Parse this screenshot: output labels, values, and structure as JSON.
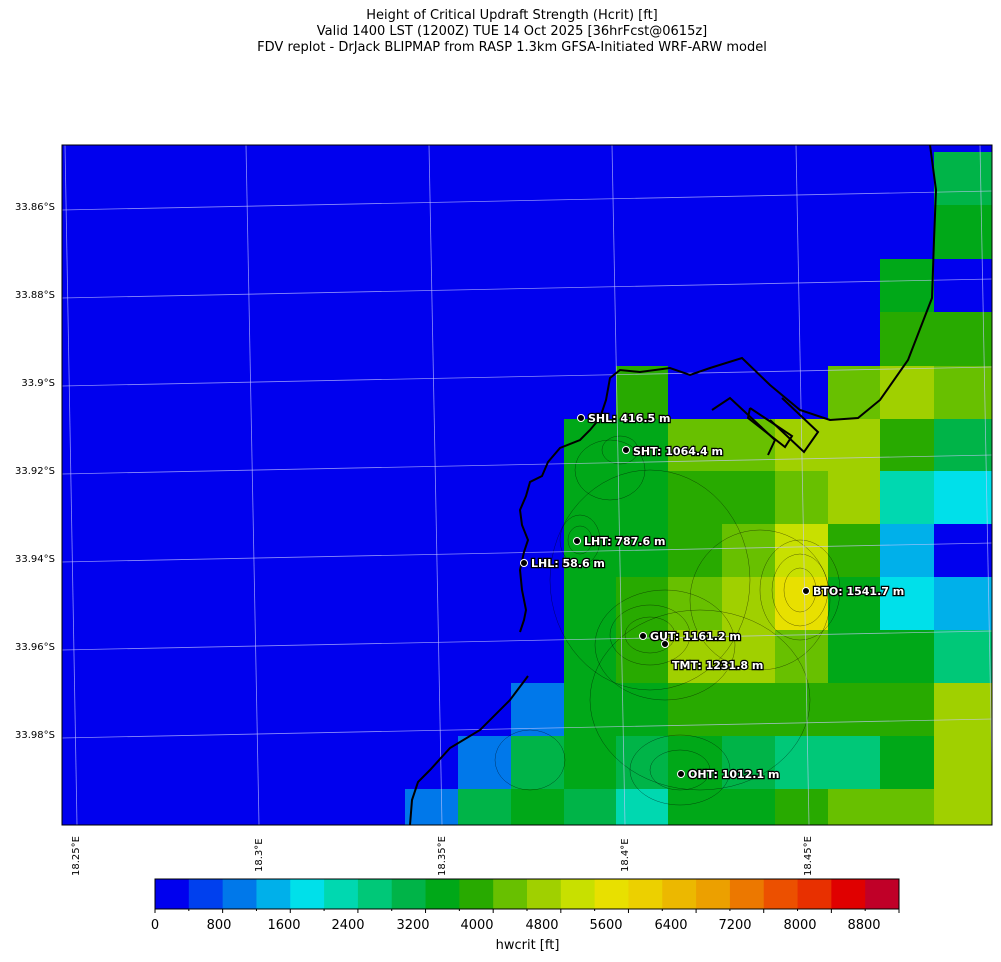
{
  "title": {
    "line1": "Height of Critical Updraft Strength (Hcrit) [ft]",
    "line2": "Valid 1400 LST (1200Z) TUE 14 Oct 2025 [36hrFcst@0615z]",
    "line3": "FDV replot - DrJack BLIPMAP from RASP 1.3km GFSA-Initiated WRF-ARW model"
  },
  "map": {
    "lat_labels": [
      "33.86°S",
      "33.88°S",
      "33.9°S",
      "33.92°S",
      "33.94°S",
      "33.96°S",
      "33.98°S"
    ],
    "lon_labels": [
      "18.25°E",
      "18.3°E",
      "18.35°E",
      "18.4°E",
      "18.45°E"
    ],
    "sites": [
      {
        "code": "SHL",
        "label": "SHL: 416.5 m"
      },
      {
        "code": "SHT",
        "label": "SHT: 1064.4 m"
      },
      {
        "code": "LHT",
        "label": "LHT: 787.6 m"
      },
      {
        "code": "LHL",
        "label": "LHL: 58.6 m"
      },
      {
        "code": "BTO",
        "label": "BTO: 1541.7 m"
      },
      {
        "code": "GUT",
        "label": "GUT: 1161.2 m"
      },
      {
        "code": "TMT",
        "label": "TMT: 1231.8 m"
      },
      {
        "code": "OHT",
        "label": "OHT: 1012.1 m"
      }
    ]
  },
  "colorbar": {
    "label": "hwcrit [ft]",
    "ticks": [
      "0",
      "800",
      "1600",
      "2400",
      "3200",
      "4000",
      "4800",
      "5600",
      "6400",
      "7200",
      "8000",
      "8800"
    ],
    "colors": [
      "#0000ee",
      "#0040ee",
      "#0078ea",
      "#00b0ea",
      "#00e0ea",
      "#00d8b0",
      "#00c878",
      "#00b448",
      "#00a818",
      "#28aa00",
      "#68c000",
      "#a0d000",
      "#c8e000",
      "#e8e000",
      "#ecd000",
      "#ecb800",
      "#eca000",
      "#ec7800",
      "#ec5000",
      "#e83000",
      "#e00000",
      "#c00028"
    ]
  },
  "palette": {
    "background": "#0000ee",
    "coast": "#000000",
    "grid": "#c8c8ff"
  }
}
